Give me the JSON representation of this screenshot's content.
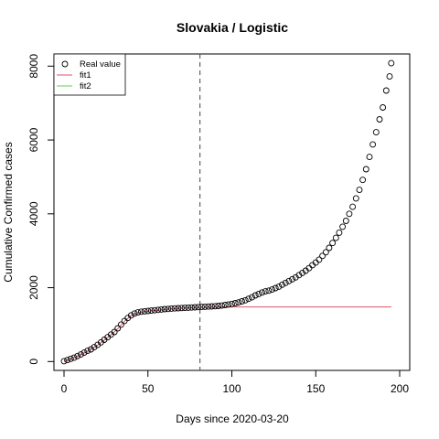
{
  "chart_data": {
    "type": "scatter",
    "title": "Slovakia / Logistic",
    "xlabel": "Days since 2020-03-20",
    "ylabel": "Cumulative Confirmed cases",
    "xlim": [
      -6,
      206
    ],
    "ylim": [
      -240,
      8330
    ],
    "xticks": [
      0,
      50,
      100,
      150,
      200
    ],
    "yticks": [
      0,
      2000,
      4000,
      6000,
      8000
    ],
    "grid": false,
    "legend_position": "top-left",
    "vline_x": 81,
    "colors": {
      "points": "#000000",
      "fit1": "#df536b",
      "fit2": "#61d04f",
      "vline": "#555555"
    },
    "legend": [
      {
        "label": "Real value",
        "kind": "point"
      },
      {
        "label": "fit1",
        "kind": "line",
        "color": "#df536b"
      },
      {
        "label": "fit2",
        "kind": "line",
        "color": "#61d04f"
      }
    ],
    "series": [
      {
        "name": "Real value",
        "kind": "points",
        "x": [
          0,
          2,
          4,
          6,
          8,
          10,
          12,
          14,
          16,
          18,
          20,
          22,
          24,
          26,
          28,
          30,
          32,
          34,
          36,
          38,
          40,
          42,
          44,
          46,
          48,
          50,
          52,
          54,
          56,
          58,
          60,
          62,
          64,
          66,
          68,
          70,
          72,
          74,
          76,
          78,
          80,
          82,
          84,
          86,
          88,
          90,
          92,
          94,
          96,
          98,
          100,
          102,
          104,
          106,
          108,
          110,
          112,
          114,
          116,
          118,
          120,
          122,
          124,
          126,
          128,
          130,
          132,
          134,
          136,
          138,
          140,
          142,
          144,
          146,
          148,
          150,
          152,
          154,
          156,
          158,
          160,
          162,
          164,
          166,
          168,
          170,
          172,
          174,
          176,
          178,
          180,
          182,
          184,
          186,
          188,
          190,
          192,
          194,
          195
        ],
        "y": [
          10,
          40,
          75,
          105,
          150,
          190,
          240,
          290,
          330,
          390,
          450,
          520,
          590,
          660,
          730,
          800,
          900,
          1000,
          1100,
          1180,
          1250,
          1300,
          1330,
          1350,
          1360,
          1370,
          1380,
          1390,
          1400,
          1410,
          1420,
          1425,
          1435,
          1440,
          1445,
          1450,
          1455,
          1460,
          1465,
          1470,
          1475,
          1480,
          1485,
          1490,
          1495,
          1500,
          1505,
          1515,
          1530,
          1545,
          1560,
          1580,
          1600,
          1630,
          1660,
          1700,
          1740,
          1790,
          1830,
          1870,
          1900,
          1920,
          1950,
          1990,
          2030,
          2080,
          2130,
          2180,
          2230,
          2280,
          2340,
          2400,
          2460,
          2530,
          2610,
          2680,
          2760,
          2860,
          2960,
          3080,
          3210,
          3350,
          3490,
          3650,
          3810,
          4000,
          4190,
          4420,
          4650,
          4920,
          5210,
          5540,
          5880,
          6210,
          6560,
          6880,
          7340,
          7720,
          8080
        ]
      },
      {
        "name": "fit1",
        "kind": "line",
        "x": [
          0,
          4,
          8,
          12,
          16,
          20,
          24,
          28,
          32,
          36,
          40,
          44,
          48,
          52,
          56,
          60,
          64,
          68,
          72,
          76,
          80,
          84,
          88,
          92,
          96,
          100,
          110,
          120,
          130,
          140,
          150,
          160,
          170,
          180,
          190,
          195
        ],
        "y": [
          5,
          70,
          140,
          230,
          330,
          440,
          580,
          720,
          890,
          1090,
          1240,
          1320,
          1355,
          1375,
          1390,
          1410,
          1425,
          1440,
          1450,
          1460,
          1465,
          1470,
          1473,
          1475,
          1477,
          1478,
          1479,
          1480,
          1480,
          1480,
          1480,
          1480,
          1480,
          1480,
          1480,
          1480
        ]
      }
    ]
  }
}
